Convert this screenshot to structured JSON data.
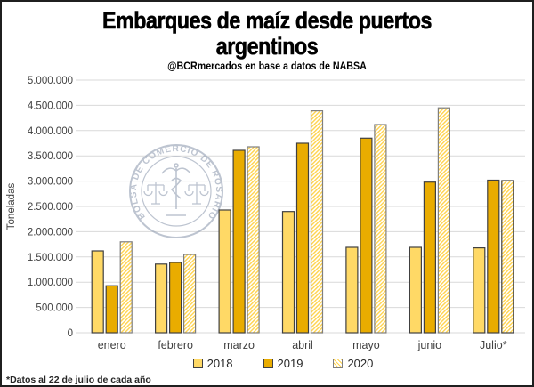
{
  "header": {
    "title_line1": "Embarques de maíz desde puertos",
    "title_line2": "argentinos",
    "subtitle": "@BCRmercados en base a datos de NABSA"
  },
  "footnote": "*Datos al 22 de julio de cada año",
  "watermark": {
    "ring_text": "BOLSA DE COMERCIO DE ROSARIO",
    "color": "#9AA5B8"
  },
  "colors": {
    "background": "#FFFFFF",
    "figure_border": "#1F1F1F",
    "gridline": "#D9D9D9",
    "axis_text": "#404040",
    "hatch_line": "#FFD34D"
  },
  "chart_data": {
    "type": "bar",
    "title": "Embarques de maíz desde puertos argentinos",
    "subtitle": "@BCRmercados en base a datos de NABSA",
    "xlabel": "",
    "ylabel": "Toneladas",
    "ylim": [
      0,
      5000000
    ],
    "ytick_step": 500000,
    "grid": true,
    "legend_position": "bottom",
    "categories": [
      "enero",
      "febrero",
      "marzo",
      "abril",
      "mayo",
      "junio",
      "Julio*"
    ],
    "series": [
      {
        "name": "2018",
        "fill": "#FFD966",
        "stroke": "#404040",
        "values": [
          1620000,
          1360000,
          2430000,
          2400000,
          1690000,
          1690000,
          1680000
        ]
      },
      {
        "name": "2019",
        "fill": "#E9AC00",
        "stroke": "#404040",
        "values": [
          930000,
          1390000,
          3610000,
          3750000,
          3850000,
          2980000,
          3020000
        ]
      },
      {
        "name": "2020",
        "fill": "hatch",
        "stroke": "#7F7F7F",
        "stroke_last": "#404040",
        "values": [
          1800000,
          1550000,
          3680000,
          4390000,
          4120000,
          4450000,
          3010000
        ]
      }
    ]
  }
}
